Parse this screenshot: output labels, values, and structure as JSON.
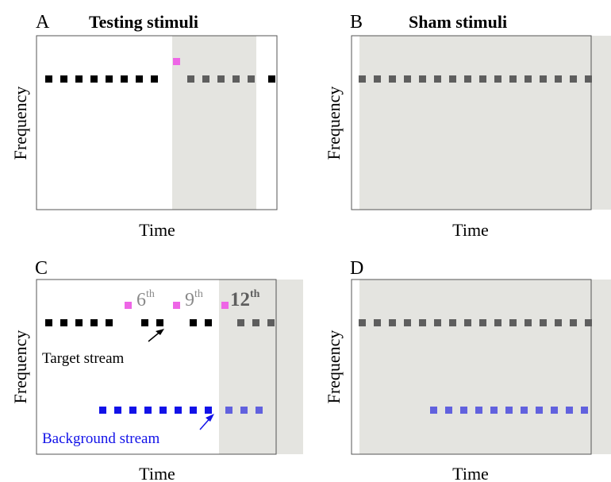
{
  "panels": {
    "A": {
      "letter": "A",
      "title": "Testing stimuli",
      "xlabel": "Time",
      "ylabel": "Frequency"
    },
    "B": {
      "letter": "B",
      "title": "Sham stimuli",
      "xlabel": "Time",
      "ylabel": "Frequency"
    },
    "C": {
      "letter": "C",
      "xlabel": "Time",
      "ylabel": "Frequency",
      "ordinals": [
        {
          "num": "6",
          "sup": "th"
        },
        {
          "num": "9",
          "sup": "th"
        },
        {
          "num": "12",
          "sup": "th"
        }
      ],
      "target_label": "Target stream",
      "background_label": "Background stream"
    },
    "D": {
      "letter": "D",
      "xlabel": "Time",
      "ylabel": "Frequency"
    }
  },
  "colors": {
    "target": "#000000",
    "target_dim": "#5e5e5e",
    "deviant": "#ee66e6",
    "background": "#1212e8",
    "background_dim": "#6161de",
    "shade": "#e4e4e0",
    "frame": "#555555"
  }
}
